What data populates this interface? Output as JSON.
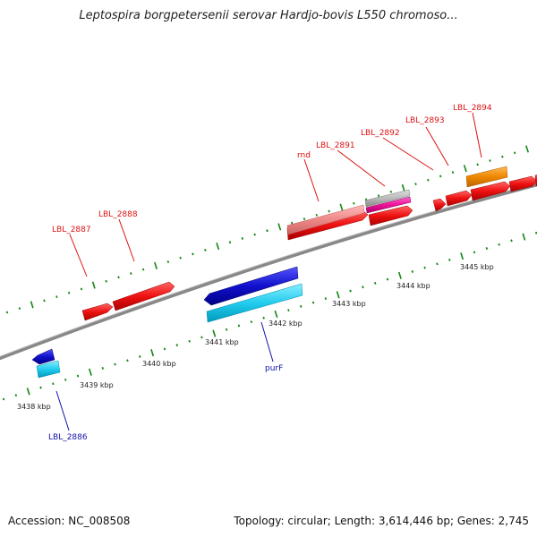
{
  "title": "Leptospira borgpetersenii serovar Hardjo-bovis L550 chromoso...",
  "footer": {
    "accession": "Accession: NC_008508",
    "summary": "Topology: circular; Length: 3,614,446 bp; Genes: 2,745"
  },
  "colors": {
    "forward_gene": "#ee1111",
    "reverse_gene": "#1111cc",
    "cyan_feature": "#22ccee",
    "pink_feature": "#ee8888",
    "magenta_feature": "#ee1199",
    "gray_feature": "#bbbbbb",
    "orange_feature": "#ee8800",
    "backbone": "#888888",
    "ticks": "#118811",
    "forward_label": "#dd1111",
    "reverse_label": "#1111aa"
  },
  "scale_labels": [
    "3438 kbp",
    "3439 kbp",
    "3440 kbp",
    "3441 kbp",
    "3442 kbp",
    "3443 kbp",
    "3444 kbp",
    "3445 kbp"
  ],
  "gene_labels": {
    "lbl_2887": "LBL_2887",
    "lbl_2888": "LBL_2888",
    "rnd": "rnd",
    "lbl_2891": "LBL_2891",
    "lbl_2892": "LBL_2892",
    "lbl_2893": "LBL_2893",
    "lbl_2894": "LBL_2894",
    "purf": "purF",
    "lbl_2886": "LBL_2886"
  }
}
